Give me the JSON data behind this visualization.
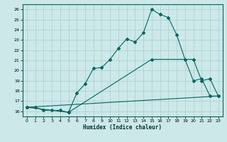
{
  "title": "",
  "xlabel": "Humidex (Indice chaleur)",
  "bg_color": "#cce8e8",
  "grid_color": "#aacccc",
  "line_color": "#006666",
  "xlim": [
    -0.5,
    23.5
  ],
  "ylim": [
    15.5,
    26.5
  ],
  "xticks": [
    0,
    1,
    2,
    3,
    4,
    5,
    6,
    7,
    8,
    9,
    10,
    11,
    12,
    13,
    14,
    15,
    16,
    17,
    18,
    19,
    20,
    21,
    22,
    23
  ],
  "yticks": [
    16,
    17,
    18,
    19,
    20,
    21,
    22,
    23,
    24,
    25,
    26
  ],
  "line1_x": [
    0,
    1,
    2,
    3,
    4,
    5,
    6,
    7,
    8,
    9,
    10,
    11,
    12,
    13,
    14,
    15,
    16,
    17,
    18,
    19,
    20,
    21,
    22,
    23
  ],
  "line1_y": [
    16.4,
    16.4,
    16.1,
    16.1,
    16.1,
    15.9,
    17.8,
    18.7,
    20.2,
    20.3,
    21.1,
    22.2,
    23.1,
    22.8,
    23.7,
    26.0,
    25.5,
    25.2,
    23.5,
    21.1,
    19.0,
    19.2,
    17.5,
    17.5
  ],
  "line2_x": [
    0,
    5,
    15,
    20,
    21,
    22,
    23
  ],
  "line2_y": [
    16.4,
    15.9,
    21.1,
    21.1,
    19.0,
    19.2,
    17.5
  ],
  "line3_x": [
    0,
    23
  ],
  "line3_y": [
    16.4,
    17.5
  ]
}
